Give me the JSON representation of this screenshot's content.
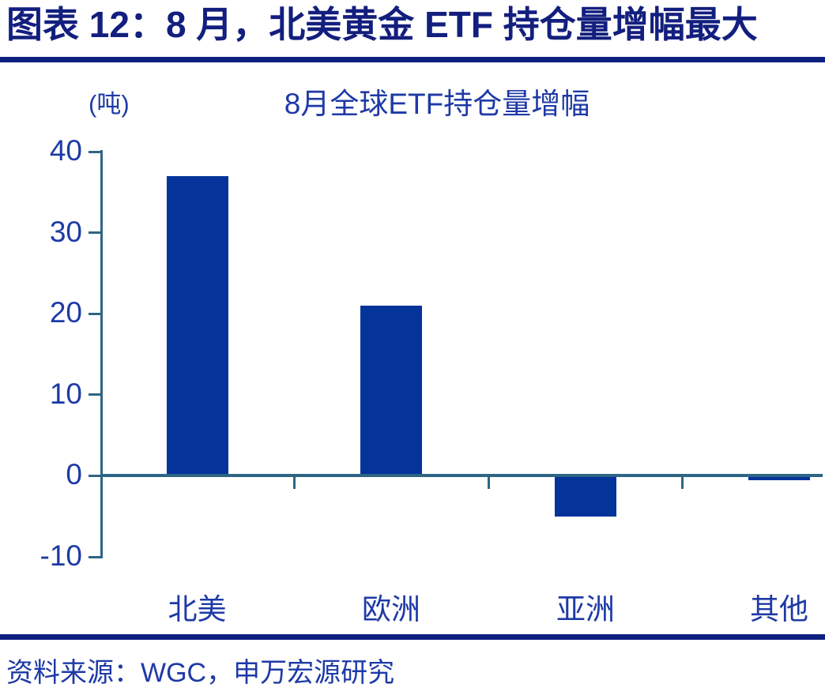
{
  "figure": {
    "title": "图表 12：8 月，北美黄金 ETF 持仓量增幅最大"
  },
  "chart_data": {
    "type": "bar",
    "title": "8月全球ETF持仓量增幅",
    "unit_label": "(吨)",
    "categories": [
      "北美",
      "欧洲",
      "亚洲",
      "其他"
    ],
    "values": [
      37,
      21,
      -5,
      -0.5
    ],
    "ylabel": "吨",
    "yticks": [
      40,
      30,
      20,
      10,
      0,
      -10
    ],
    "ylim": [
      -10,
      40
    ],
    "grid": false,
    "legend": "none",
    "bar_color": "#04339a",
    "axis_color": "#2e6584",
    "text_color": "#1e3aa6"
  },
  "source": {
    "text": "资料来源：WGC，申万宏源研究"
  },
  "colors": {
    "heading_text": "#131f7e",
    "rule": "#0f2080"
  }
}
